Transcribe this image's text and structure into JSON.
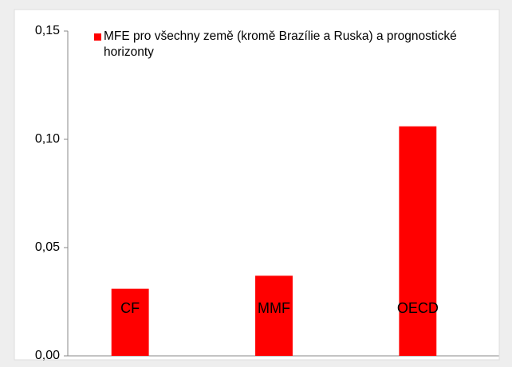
{
  "chart_data": {
    "type": "bar",
    "categories": [
      "CF",
      "MMF",
      "OECD"
    ],
    "series": [
      {
        "name": "MFE pro všechny země (kromě Brazílie a Ruska) a prognostické horizonty",
        "color": "#ff0000",
        "values": [
          0.031,
          0.037,
          0.106
        ]
      }
    ],
    "ylim": [
      0,
      0.15
    ],
    "yticks": [
      {
        "value": 0,
        "label": "0,00"
      },
      {
        "value": 0.05,
        "label": "0,05"
      },
      {
        "value": 0.1,
        "label": "0,10"
      },
      {
        "value": 0.15,
        "label": "0,15"
      }
    ],
    "grid": false
  }
}
